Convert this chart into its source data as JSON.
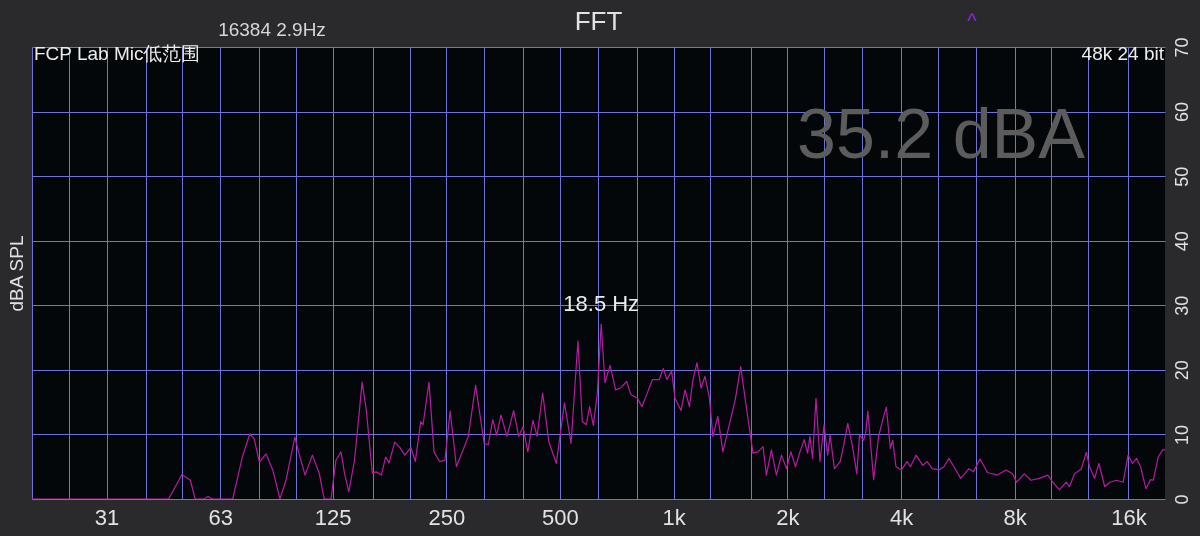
{
  "chart_data": {
    "type": "line",
    "title": "FFT",
    "ylabel": "dBA SPL",
    "annotations": [
      "16384 2.9Hz",
      "FCP Lab Mic低范围",
      "48k 24 bit",
      "35.2 dBA",
      "^",
      {
        "text": "18.5 Hz",
        "x": 643,
        "y": 27.1
      }
    ],
    "x": [
      20,
      46,
      49.9,
      52.5,
      54.1,
      57,
      58.5,
      60,
      68,
      72.1,
      75.5,
      77.5,
      80,
      83.3,
      86.8,
      90.7,
      94.1,
      99.3,
      101.9,
      105.7,
      110.5,
      115.2,
      118.8,
      123.8,
      127.6,
      131.6,
      134.4,
      138,
      142.9,
      149.7,
      153.5,
      159.3,
      163.1,
      168.3,
      172.7,
      176.4,
      182.6,
      188.3,
      194.2,
      201.5,
      207,
      214,
      217,
      225,
      232,
      240,
      248,
      256,
      266,
      277,
      286,
      299,
      315,
      323,
      332,
      340,
      349,
      362,
      377,
      389,
      399,
      411,
      424,
      435,
      450,
      467,
      489,
      514,
      535,
      558,
      573,
      587,
      599,
      613,
      628,
      643,
      658,
      679,
      702,
      724,
      751,
      770,
      802,
      824,
      849,
      879,
      916,
      939,
      960,
      988,
      1008,
      1046,
      1072,
      1101,
      1123,
      1153,
      1182,
      1211,
      1244,
      1270,
      1309,
      1350,
      1421,
      1456,
      1505,
      1557,
      1622,
      1673,
      1725,
      1760,
      1815,
      1871,
      1930,
      1990,
      2044,
      2102,
      2160,
      2217,
      2263,
      2296,
      2333,
      2382,
      2441,
      2502,
      2558,
      2596,
      2665,
      2760,
      2816,
      2891,
      2976,
      3055,
      3106,
      3183,
      3228,
      3268,
      3384,
      3489,
      3598,
      3658,
      3748,
      3802,
      3879,
      4010,
      4150,
      4237,
      4385,
      4569,
      4691,
      4837,
      5039,
      5196,
      5358,
      5524,
      5756,
      6056,
      6218,
      6478,
      6774,
      7202,
      7582,
      7896,
      8091,
      8482,
      8837,
      9298,
      9782,
      10090,
      10510,
      10950,
      11170,
      11520,
      12000,
      12380,
      12630,
      13020,
      13370,
      13850,
      14280,
      14880,
      15490,
      15970,
      16410,
      16810,
      17230,
      17800,
      18320,
      18610,
      19190,
      19720,
      20000
    ],
    "series": [
      {
        "color": "#b81aa2",
        "values": [
          0,
          0,
          3.8,
          2.9,
          0,
          0,
          0.4,
          0,
          0,
          6.5,
          10.1,
          9.3,
          5.7,
          7.0,
          4.5,
          0,
          2.9,
          9.6,
          7.0,
          3.7,
          6.8,
          4.0,
          0,
          0,
          6.0,
          7.3,
          4.0,
          1.1,
          6.0,
          18.1,
          13.8,
          4.0,
          4.2,
          3.7,
          6.5,
          5.6,
          8.8,
          8.0,
          6.8,
          8.0,
          5.8,
          12.0,
          11.5,
          18.1,
          7.3,
          5.8,
          6.0,
          13.6,
          5.0,
          7.6,
          9.7,
          17.6,
          8.6,
          8.4,
          12.3,
          9.9,
          13.0,
          9.7,
          13.7,
          9.7,
          11.2,
          7.3,
          12.2,
          9.7,
          16.4,
          8.9,
          5.5,
          14.9,
          8.6,
          24.5,
          12.0,
          11.5,
          14.3,
          11.4,
          16.4,
          27.1,
          18.0,
          20.7,
          16.9,
          17.2,
          18.2,
          16.2,
          15.6,
          14.3,
          16.2,
          18.5,
          18.5,
          20.2,
          18.5,
          19.8,
          15.6,
          13.7,
          16.9,
          14.3,
          18.2,
          21.1,
          17.2,
          19.0,
          15.6,
          9.7,
          12.8,
          7.3,
          12.8,
          15.4,
          20.5,
          14.3,
          7.1,
          7.3,
          8.1,
          3.7,
          7.6,
          3.7,
          6.8,
          4.7,
          7.3,
          5.0,
          7.3,
          9.2,
          7.1,
          9.7,
          6.3,
          15.6,
          5.8,
          11.5,
          6.8,
          9.9,
          4.7,
          5.8,
          8.1,
          11.7,
          8.1,
          3.9,
          9.9,
          9.1,
          10.4,
          13.6,
          3.0,
          9.7,
          12.8,
          14.2,
          7.8,
          9.1,
          5.0,
          4.5,
          5.8,
          5.0,
          6.8,
          5.2,
          5.8,
          4.7,
          4.5,
          5.0,
          6.3,
          5.0,
          3.2,
          4.7,
          4.2,
          6.2,
          4.1,
          3.7,
          4.5,
          3.9,
          2.6,
          3.9,
          2.9,
          3.2,
          3.7,
          2.6,
          1.4,
          2.6,
          1.9,
          3.9,
          4.6,
          7.2,
          5.0,
          3.2,
          5.5,
          1.9,
          2.6,
          2.9,
          2.6,
          6.8,
          5.5,
          6.3,
          5.0,
          1.6,
          3.0,
          2.9,
          6.5,
          7.6,
          7.6
        ]
      }
    ],
    "xlim": [
      20,
      20000
    ],
    "ylim": [
      0,
      70
    ],
    "xticks": [
      {
        "value": 20,
        "label": null
      },
      {
        "value": 25,
        "label": null
      },
      {
        "value": 31.5,
        "label": "31"
      },
      {
        "value": 40,
        "label": null
      },
      {
        "value": 50,
        "label": null
      },
      63,
      {
        "value": 80,
        "label": null
      },
      {
        "value": 100,
        "label": null
      },
      125,
      {
        "value": 160,
        "label": null
      },
      {
        "value": 200,
        "label": null
      },
      250,
      {
        "value": 315,
        "label": null
      },
      {
        "value": 400,
        "label": null
      },
      500,
      {
        "value": 630,
        "label": null
      },
      {
        "value": 800,
        "label": null
      },
      {
        "value": 1000,
        "label": "1k"
      },
      {
        "value": 1250,
        "label": null
      },
      {
        "value": 1600,
        "label": null
      },
      {
        "value": 2000,
        "label": "2k"
      },
      {
        "value": 2500,
        "label": null
      },
      {
        "value": 3150,
        "label": null
      },
      {
        "value": 4000,
        "label": "4k"
      },
      {
        "value": 5000,
        "label": null
      },
      {
        "value": 6300,
        "label": null
      },
      {
        "value": 8000,
        "label": "8k"
      },
      {
        "value": 10000,
        "label": null
      },
      {
        "value": 12500,
        "label": null
      },
      {
        "value": 16000,
        "label": "16k"
      }
    ],
    "yticks": [
      0,
      10,
      20,
      30,
      40,
      50,
      60,
      70
    ],
    "log": "x",
    "grid": true,
    "line_style": "solid"
  }
}
